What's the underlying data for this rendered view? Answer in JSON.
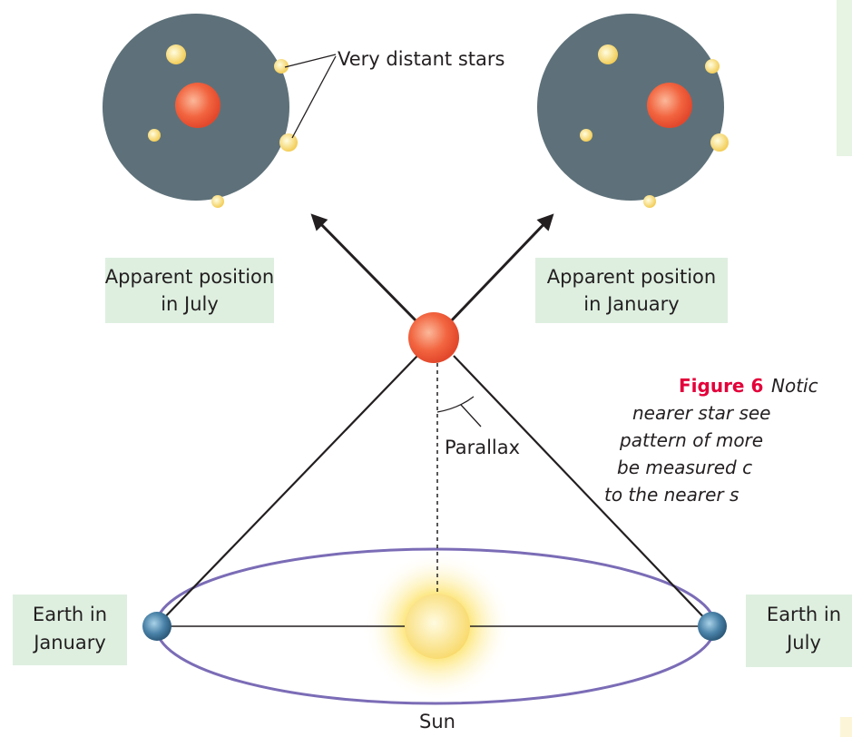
{
  "labels": {
    "distant_stars": "Very distant stars",
    "july_position": [
      "Apparent position",
      "in July"
    ],
    "january_position": [
      "Apparent position",
      "in January"
    ],
    "parallax": "Parallax",
    "earth_january": [
      "Earth in",
      "January"
    ],
    "earth_july": [
      "Earth in",
      "July"
    ],
    "sun": "Sun"
  },
  "caption": {
    "figure": "Figure 6",
    "lines": [
      "Notic",
      "nearer star see",
      "pattern of more",
      "be measured c",
      "to the nearer s"
    ]
  }
}
